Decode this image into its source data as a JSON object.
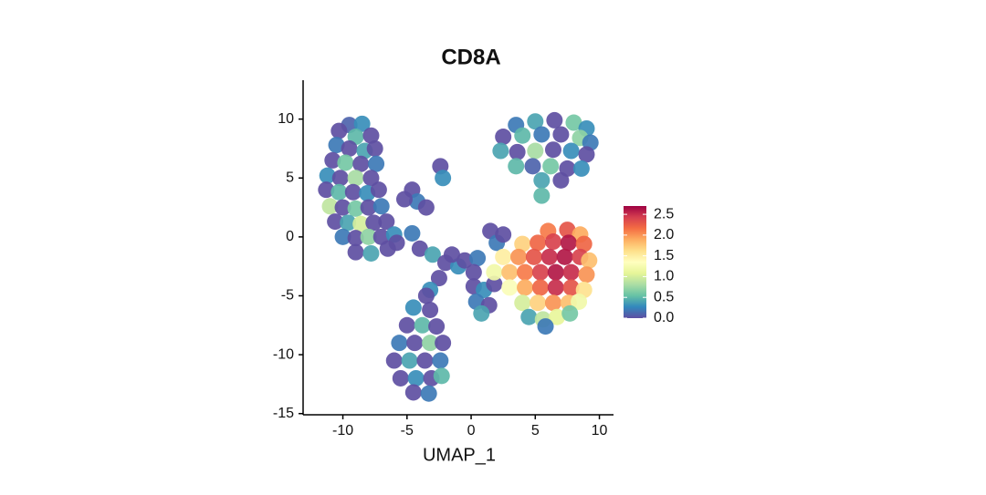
{
  "chart_data": {
    "type": "scatter",
    "title": "CD8A",
    "x_label": "UMAP_1",
    "xlim": [
      -13.1,
      11.1
    ],
    "ylim": [
      -15.1,
      13.3
    ],
    "xticks": [
      -10,
      -5,
      0,
      5,
      10
    ],
    "yticks": [
      10,
      5,
      0,
      -5,
      -10,
      -15
    ],
    "x": [
      -9.5,
      -8.5,
      -10.3,
      -9,
      -7.8,
      -10.5,
      -9.5,
      -8.3,
      -7.5,
      -10.8,
      -9.8,
      -8.6,
      -7.4,
      -11.2,
      -10.2,
      -9,
      -7.8,
      -11.3,
      -10.3,
      -9.2,
      -8.1,
      -7.2,
      -11,
      -10,
      -9,
      -8,
      -7,
      -10.6,
      -9.6,
      -8.6,
      -7.6,
      -6.6,
      -10,
      -9,
      -8,
      -7,
      -6,
      -9,
      -7.8,
      -6.5,
      -2.4,
      -2.2,
      -4.6,
      -4.2,
      -5.2,
      -3.5,
      -5.8,
      -4.6,
      -4,
      -3,
      -2,
      -1,
      -1.5,
      -0.5,
      0.5,
      0.2,
      -2.5,
      -3.2,
      3.5,
      5,
      6.5,
      8,
      9,
      2.5,
      4,
      5.5,
      7,
      8.5,
      9.3,
      2.3,
      3.6,
      5,
      6.4,
      7.8,
      9,
      3.5,
      4.8,
      6.2,
      7.5,
      8.6,
      5.5,
      7,
      5.5,
      1.5,
      2,
      2.5,
      -3.5,
      -4.5,
      -3.2,
      -5,
      -3.8,
      -2.7,
      -5.6,
      -4.4,
      -3.2,
      -2.2,
      -6,
      -4.8,
      -3.6,
      -2.4,
      -5.5,
      -4.3,
      -3.1,
      -2.3,
      -4.5,
      -3.3,
      0.2,
      1,
      0.4,
      1.4,
      0.8,
      1.8,
      6,
      7.5,
      8.5,
      4,
      5.2,
      6.4,
      7.6,
      8.8,
      2.5,
      3.7,
      4.9,
      6.1,
      7.3,
      8.5,
      9.2,
      1.8,
      3,
      4.2,
      5.4,
      6.6,
      7.8,
      9,
      3,
      4.2,
      5.4,
      6.6,
      7.8,
      8.8,
      4,
      5.2,
      6.4,
      7.6,
      8.4,
      4.5,
      5.6,
      6.7,
      7.7,
      5.8
    ],
    "y": [
      9.5,
      9.6,
      9,
      8.5,
      8.6,
      7.8,
      7.5,
      7.3,
      7.5,
      6.5,
      6.3,
      6.2,
      6.2,
      5.2,
      5,
      5,
      5,
      4,
      3.8,
      3.8,
      3.7,
      4,
      2.6,
      2.5,
      2.4,
      2.5,
      2.6,
      1.3,
      1.2,
      1.1,
      1.2,
      1.3,
      0,
      -0.1,
      0,
      0,
      0.2,
      -1.3,
      -1.4,
      -1,
      6,
      5,
      4,
      3,
      3.2,
      2.5,
      -0.5,
      0.3,
      -1,
      -1.5,
      -2.2,
      -2.5,
      -1.5,
      -2,
      -1.8,
      -3,
      -3.5,
      -4.5,
      9.5,
      9.8,
      9.9,
      9.7,
      9.2,
      8.5,
      8.6,
      8.7,
      8.7,
      8.4,
      8,
      7.3,
      7.2,
      7.3,
      7.4,
      7.3,
      7,
      6,
      6,
      6,
      5.8,
      5.8,
      4.8,
      4.8,
      3.5,
      0.5,
      -0.5,
      0.2,
      -5,
      -6,
      -6.2,
      -7.5,
      -7.5,
      -7.6,
      -9,
      -9,
      -9,
      -9,
      -10.5,
      -10.5,
      -10.5,
      -10.5,
      -12,
      -12,
      -12,
      -11.8,
      -13.2,
      -13.3,
      -4.2,
      -4.5,
      -5.5,
      -5.8,
      -6.5,
      -4,
      0.5,
      0.6,
      0.2,
      -0.6,
      -0.5,
      -0.4,
      -0.5,
      -0.6,
      -1.7,
      -1.7,
      -1.7,
      -1.7,
      -1.7,
      -1.7,
      -2,
      -3,
      -3,
      -3,
      -3,
      -3,
      -3,
      -3.2,
      -4.3,
      -4.3,
      -4.3,
      -4.3,
      -4.3,
      -4.5,
      -5.6,
      -5.6,
      -5.6,
      -5.6,
      -5.5,
      -6.8,
      -7,
      -6.8,
      -6.5,
      -7.6
    ],
    "color_values": [
      0.1,
      0.3,
      0,
      0.5,
      0,
      0.2,
      0,
      0.4,
      0,
      0,
      0.6,
      0,
      0.2,
      0.3,
      0,
      0.8,
      0,
      0,
      0.5,
      0,
      0.3,
      0,
      0.9,
      0,
      0.6,
      0,
      0.2,
      0,
      0.4,
      1,
      0,
      0,
      0.2,
      0,
      0.7,
      0,
      0.3,
      0,
      0.4,
      0,
      0,
      0.3,
      0,
      0.2,
      0,
      0,
      0,
      0.2,
      0,
      0.4,
      0,
      0.3,
      0,
      0,
      0.2,
      0,
      0,
      0.3,
      0.2,
      0.4,
      0,
      0.6,
      0.3,
      0,
      0.5,
      0.2,
      0,
      0.7,
      0.2,
      0.4,
      0,
      0.8,
      0,
      0.3,
      0,
      0.5,
      0.1,
      0.6,
      0,
      0.3,
      0.4,
      0,
      0.5,
      0,
      0.2,
      0,
      0,
      0.3,
      0,
      0,
      0.5,
      0,
      0.2,
      0,
      0.7,
      0,
      0,
      0.4,
      0,
      0.2,
      0,
      0.3,
      0,
      0.5,
      0,
      0.2,
      0,
      0.3,
      0.2,
      0,
      0.4,
      0,
      2.1,
      2.3,
      1.9,
      1.7,
      2.2,
      2.4,
      2.6,
      2.2,
      1.5,
      2,
      2.3,
      2.5,
      2.6,
      2.4,
      1.8,
      1.2,
      1.8,
      2.1,
      2.4,
      2.6,
      2.5,
      2,
      1.3,
      1.9,
      2.2,
      2.5,
      2.3,
      1.6,
      1,
      1.7,
      2,
      1.8,
      1.2,
      0.4,
      0.9,
      1.1,
      0.6,
      0.2
    ],
    "colorbar": {
      "lim": [
        0,
        2.7
      ],
      "ticks": [
        {
          "value": 0,
          "label": "0.0"
        },
        0.5,
        {
          "value": 1,
          "label": "1.0"
        },
        1.5,
        {
          "value": 2,
          "label": "2.0"
        },
        2.5
      ],
      "colors": [
        "#5e4fa2",
        "#3288bd",
        "#66c2a5",
        "#abdda4",
        "#e6f598",
        "#ffffbf",
        "#fee08b",
        "#fdae61",
        "#f46d43",
        "#d53e4f",
        "#9e0142"
      ]
    }
  }
}
